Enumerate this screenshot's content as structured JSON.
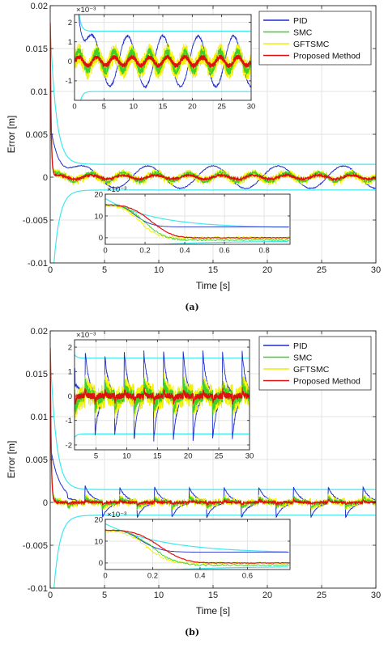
{
  "colors": {
    "PID": "#1f2fd0",
    "SMC": "#3ed02a",
    "GFTSMC": "#f0f000",
    "Proposed Method": "#e01010",
    "bounds": "#3fe8ee"
  },
  "chart_data": [
    {
      "type": "line",
      "caption": "(a)",
      "xlabel": "Time [s]",
      "ylabel": "Error [m]",
      "xlim": [
        0,
        30
      ],
      "ylim": [
        -0.01,
        0.02
      ],
      "xticks": [
        "0",
        "5",
        "10",
        "15",
        "20",
        "25",
        "30"
      ],
      "yticks": [
        "-0.01",
        "-0.005",
        "0",
        "0.005",
        "0.01",
        "0.015",
        "0.02"
      ],
      "grid": true,
      "legend": {
        "placement": "top-right",
        "entries": [
          "PID",
          "SMC",
          "GFTSMC",
          "Proposed Method"
        ]
      },
      "series": [
        {
          "name": "PID",
          "description_values": {
            "initial": 0.006,
            "settle_time": 2.5,
            "osc_amplitude": 0.0015,
            "osc_period": 6.0
          }
        },
        {
          "name": "SMC",
          "description_values": {
            "osc_amplitude": 0.0005,
            "osc_period": 3.0
          }
        },
        {
          "name": "GFTSMC",
          "description_values": {
            "osc_amplitude": 0.0007,
            "osc_period": 3.0
          }
        },
        {
          "name": "Proposed Method",
          "description_values": {
            "osc_amplitude": 0.00025,
            "osc_period": 3.0
          }
        }
      ],
      "insets": [
        {
          "kind": "zoom-steady",
          "multiplier": "×10⁻³",
          "xlim": [
            0,
            30
          ],
          "ylim": [
            -2,
            2.4
          ],
          "xticks": [
            "0",
            "5",
            "10",
            "15",
            "20",
            "25",
            "30"
          ],
          "yticks": [
            "-1",
            "0",
            "1",
            "2"
          ]
        },
        {
          "kind": "zoom-transient",
          "multiplier": "×10⁻³",
          "xlim": [
            0,
            0.93
          ],
          "ylim": [
            -3,
            20
          ],
          "xticks": [
            "0",
            "0.2",
            "0.4",
            "0.6",
            "0.8"
          ],
          "yticks": [
            "0",
            "10",
            "20"
          ]
        }
      ]
    },
    {
      "type": "line",
      "caption": "(b)",
      "xlabel": "Time [s]",
      "ylabel": "Error [m]",
      "xlim": [
        0,
        30
      ],
      "ylim": [
        -0.01,
        0.02
      ],
      "xticks": [
        "0",
        "5",
        "10",
        "15",
        "20",
        "25",
        "30"
      ],
      "yticks": [
        "-0.01",
        "-0.005",
        "0",
        "0.005",
        "0.01",
        "0.015",
        "0.02"
      ],
      "grid": true,
      "legend": {
        "placement": "top-right",
        "entries": [
          "PID",
          "SMC",
          "GFTSMC",
          "Proposed Method"
        ]
      },
      "series": [
        {
          "name": "PID",
          "description_values": {
            "initial": 0.006,
            "settle_time": 2.5,
            "step_amplitude": 0.0018,
            "period": 3.2
          }
        },
        {
          "name": "SMC",
          "description_values": {
            "step_amplitude": 0.0008
          }
        },
        {
          "name": "GFTSMC",
          "description_values": {
            "step_amplitude": 0.0009
          }
        },
        {
          "name": "Proposed Method",
          "description_values": {
            "step_amplitude": 0.0003
          }
        }
      ],
      "insets": [
        {
          "kind": "zoom-steady",
          "multiplier": "×10⁻³",
          "xlim": [
            1.5,
            30
          ],
          "ylim": [
            -2.2,
            2.3
          ],
          "xticks": [
            "5",
            "10",
            "15",
            "20",
            "25",
            "30"
          ],
          "yticks": [
            "-2",
            "-1",
            "0",
            "1",
            "2"
          ]
        },
        {
          "kind": "zoom-transient",
          "multiplier": "×10⁻³",
          "xlim": [
            0,
            0.78
          ],
          "ylim": [
            -3,
            20
          ],
          "xticks": [
            "0",
            "0.2",
            "0.4",
            "0.6"
          ],
          "yticks": [
            "0",
            "10",
            "20"
          ]
        }
      ]
    }
  ]
}
